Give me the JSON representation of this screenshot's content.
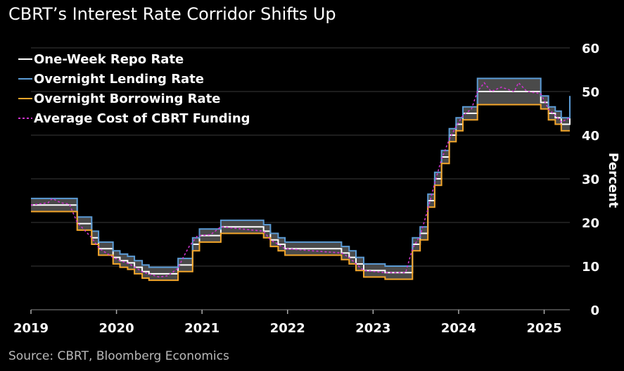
{
  "title": "CBRT’s Interest Rate Corridor Shifts Up",
  "source": "Source: CBRT, Bloomberg Economics",
  "colors": {
    "background": "#000000",
    "repo": "#ffffff",
    "lending": "#5b9bd5",
    "borrowing": "#f4a62a",
    "funding": "#cc33cc",
    "band_fill": "#4a4a4a",
    "grid": "#3a3a3a"
  },
  "chart_data": {
    "type": "line",
    "title": "CBRT’s Interest Rate Corridor Shifts Up",
    "xlabel": "",
    "ylabel": "Percent",
    "ylim": [
      0,
      60
    ],
    "xlim": [
      2019.0,
      2025.3
    ],
    "yticks": [
      "0",
      "10",
      "20",
      "30",
      "40",
      "50",
      "60"
    ],
    "xticks": [
      "2019",
      "2020",
      "2021",
      "2022",
      "2023",
      "2024",
      "2025"
    ],
    "legend_position": "top-left",
    "series": [
      {
        "name": "One-Week Repo Rate",
        "style": "step",
        "points": [
          [
            2019.0,
            24
          ],
          [
            2019.54,
            19.75
          ],
          [
            2019.71,
            16.5
          ],
          [
            2019.79,
            14
          ],
          [
            2019.96,
            12
          ],
          [
            2020.04,
            11.25
          ],
          [
            2020.13,
            10.75
          ],
          [
            2020.21,
            9.75
          ],
          [
            2020.3,
            8.75
          ],
          [
            2020.38,
            8.25
          ],
          [
            2020.72,
            10.25
          ],
          [
            2020.89,
            15
          ],
          [
            2020.97,
            17
          ],
          [
            2021.22,
            19
          ],
          [
            2021.72,
            18
          ],
          [
            2021.8,
            16
          ],
          [
            2021.89,
            15
          ],
          [
            2021.97,
            14
          ],
          [
            2022.63,
            13
          ],
          [
            2022.72,
            12
          ],
          [
            2022.8,
            10.5
          ],
          [
            2022.89,
            9
          ],
          [
            2023.14,
            8.5
          ],
          [
            2023.46,
            15
          ],
          [
            2023.55,
            17.5
          ],
          [
            2023.64,
            25
          ],
          [
            2023.72,
            30
          ],
          [
            2023.8,
            35
          ],
          [
            2023.89,
            40
          ],
          [
            2023.97,
            42.5
          ],
          [
            2024.05,
            45
          ],
          [
            2024.22,
            50
          ],
          [
            2024.96,
            47.5
          ],
          [
            2025.05,
            45
          ],
          [
            2025.13,
            44
          ],
          [
            2025.2,
            42.5
          ],
          [
            2025.3,
            46
          ]
        ]
      },
      {
        "name": "Overnight Lending Rate",
        "style": "step",
        "points": [
          [
            2019.0,
            25.5
          ],
          [
            2019.54,
            21.25
          ],
          [
            2019.71,
            18
          ],
          [
            2019.79,
            15.5
          ],
          [
            2019.96,
            13.5
          ],
          [
            2020.04,
            12.75
          ],
          [
            2020.13,
            12.25
          ],
          [
            2020.21,
            11.25
          ],
          [
            2020.3,
            10.25
          ],
          [
            2020.38,
            9.75
          ],
          [
            2020.72,
            11.75
          ],
          [
            2020.89,
            16.5
          ],
          [
            2020.97,
            18.5
          ],
          [
            2021.22,
            20.5
          ],
          [
            2021.72,
            19.5
          ],
          [
            2021.8,
            17.5
          ],
          [
            2021.89,
            16.5
          ],
          [
            2021.97,
            15.5
          ],
          [
            2022.63,
            14.5
          ],
          [
            2022.72,
            13.5
          ],
          [
            2022.8,
            12
          ],
          [
            2022.89,
            10.5
          ],
          [
            2023.14,
            10
          ],
          [
            2023.46,
            16.5
          ],
          [
            2023.55,
            19
          ],
          [
            2023.64,
            26.5
          ],
          [
            2023.72,
            31.5
          ],
          [
            2023.8,
            36.5
          ],
          [
            2023.89,
            41.5
          ],
          [
            2023.97,
            44
          ],
          [
            2024.05,
            46.5
          ],
          [
            2024.22,
            53
          ],
          [
            2024.96,
            49
          ],
          [
            2025.05,
            46.5
          ],
          [
            2025.13,
            45.5
          ],
          [
            2025.2,
            44
          ],
          [
            2025.3,
            49
          ]
        ]
      },
      {
        "name": "Overnight Borrowing Rate",
        "style": "step",
        "points": [
          [
            2019.0,
            22.5
          ],
          [
            2019.54,
            18.25
          ],
          [
            2019.71,
            15
          ],
          [
            2019.79,
            12.5
          ],
          [
            2019.96,
            10.5
          ],
          [
            2020.04,
            9.75
          ],
          [
            2020.13,
            9.25
          ],
          [
            2020.21,
            8.25
          ],
          [
            2020.3,
            7.25
          ],
          [
            2020.38,
            6.75
          ],
          [
            2020.72,
            8.75
          ],
          [
            2020.89,
            13.5
          ],
          [
            2020.97,
            15.5
          ],
          [
            2021.22,
            17.5
          ],
          [
            2021.72,
            16.5
          ],
          [
            2021.8,
            14.5
          ],
          [
            2021.89,
            13.5
          ],
          [
            2021.97,
            12.5
          ],
          [
            2022.63,
            11.5
          ],
          [
            2022.72,
            10.5
          ],
          [
            2022.8,
            9
          ],
          [
            2022.89,
            7.5
          ],
          [
            2023.14,
            7
          ],
          [
            2023.46,
            13.5
          ],
          [
            2023.55,
            16
          ],
          [
            2023.64,
            23.5
          ],
          [
            2023.72,
            28.5
          ],
          [
            2023.8,
            33.5
          ],
          [
            2023.89,
            38.5
          ],
          [
            2023.97,
            41
          ],
          [
            2024.05,
            43.5
          ],
          [
            2024.22,
            47
          ],
          [
            2024.96,
            46
          ],
          [
            2025.05,
            43.5
          ],
          [
            2025.13,
            42.5
          ],
          [
            2025.2,
            41
          ],
          [
            2025.3,
            41
          ]
        ]
      },
      {
        "name": "Average Cost of CBRT Funding",
        "style": "dashed",
        "points": [
          [
            2019.0,
            24
          ],
          [
            2019.2,
            24.5
          ],
          [
            2019.25,
            25.5
          ],
          [
            2019.35,
            24.5
          ],
          [
            2019.45,
            24.2
          ],
          [
            2019.54,
            20
          ],
          [
            2019.71,
            16.5
          ],
          [
            2019.8,
            14
          ],
          [
            2019.96,
            12
          ],
          [
            2020.05,
            11.2
          ],
          [
            2020.15,
            10.5
          ],
          [
            2020.22,
            9.7
          ],
          [
            2020.3,
            8.7
          ],
          [
            2020.38,
            8.2
          ],
          [
            2020.5,
            7.5
          ],
          [
            2020.6,
            7.8
          ],
          [
            2020.72,
            9.5
          ],
          [
            2020.78,
            12
          ],
          [
            2020.85,
            14.5
          ],
          [
            2020.95,
            17
          ],
          [
            2021.1,
            17.2
          ],
          [
            2021.22,
            19
          ],
          [
            2021.72,
            18
          ],
          [
            2021.8,
            16
          ],
          [
            2021.89,
            15
          ],
          [
            2021.97,
            14
          ],
          [
            2022.63,
            13
          ],
          [
            2022.72,
            12
          ],
          [
            2022.8,
            10.5
          ],
          [
            2022.89,
            9
          ],
          [
            2023.14,
            8.5
          ],
          [
            2023.38,
            8.5
          ],
          [
            2023.46,
            14
          ],
          [
            2023.55,
            17
          ],
          [
            2023.64,
            23
          ],
          [
            2023.72,
            29
          ],
          [
            2023.8,
            34.5
          ],
          [
            2023.89,
            39
          ],
          [
            2023.97,
            42
          ],
          [
            2024.05,
            44.5
          ],
          [
            2024.15,
            46
          ],
          [
            2024.22,
            50
          ],
          [
            2024.3,
            52
          ],
          [
            2024.38,
            50
          ],
          [
            2024.5,
            51
          ],
          [
            2024.65,
            50
          ],
          [
            2024.7,
            52
          ],
          [
            2024.8,
            50
          ],
          [
            2024.96,
            49.5
          ],
          [
            2025.05,
            46
          ],
          [
            2025.13,
            44.5
          ],
          [
            2025.2,
            43
          ],
          [
            2025.3,
            44
          ]
        ]
      }
    ]
  }
}
